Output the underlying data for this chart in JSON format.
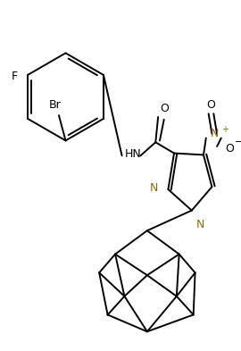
{
  "background_color": "#ffffff",
  "line_color": "#000000",
  "n_color": "#8B6914",
  "linewidth": 1.4,
  "figsize": [
    2.7,
    3.93
  ],
  "dpi": 100,
  "xlim": [
    0,
    270
  ],
  "ylim": [
    0,
    393
  ]
}
